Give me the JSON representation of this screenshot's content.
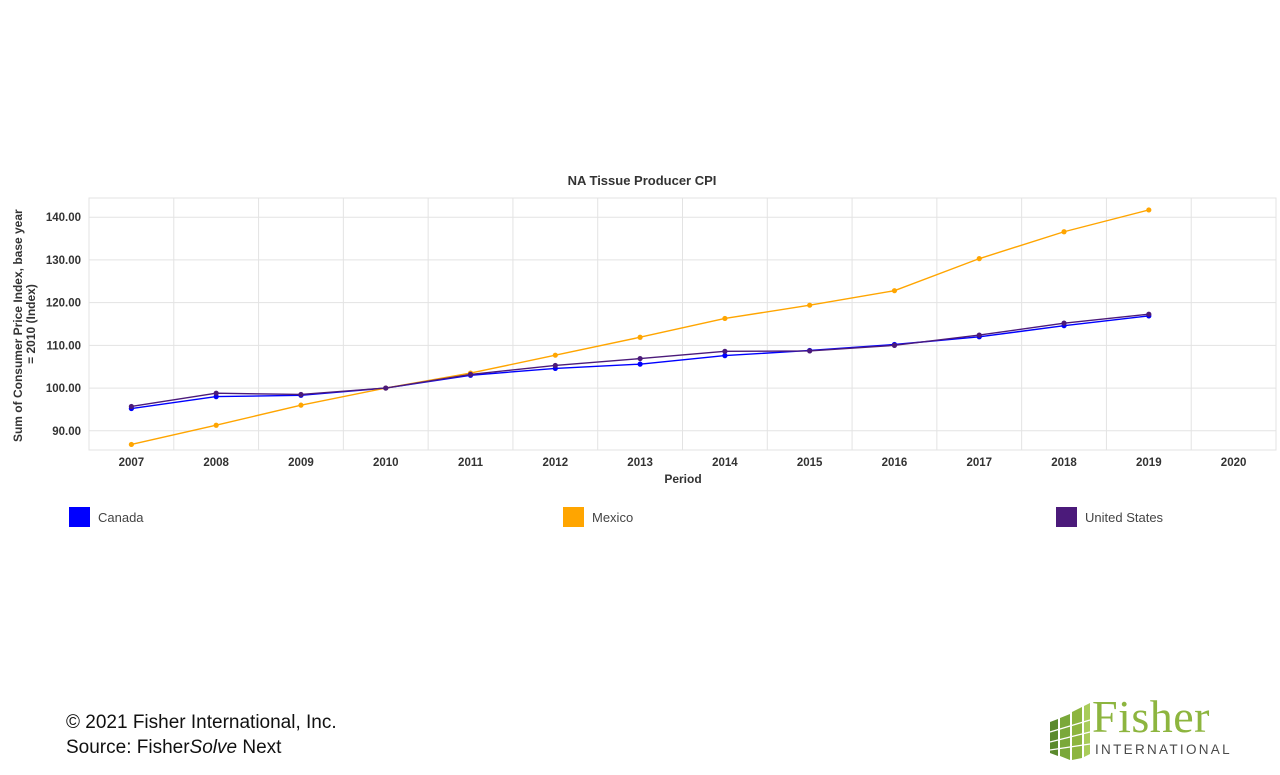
{
  "chart_data": {
    "type": "line",
    "title": "NA Tissue Producer CPI",
    "xlabel": "Period",
    "ylabel": "Sum of Consumer Price Index, base year = 2010 (Index)",
    "ylabel_lines": [
      "Sum of Consumer Price Index, base year",
      "= 2010 (Index)"
    ],
    "categories": [
      "2007",
      "2008",
      "2009",
      "2010",
      "2011",
      "2012",
      "2013",
      "2014",
      "2015",
      "2016",
      "2017",
      "2018",
      "2019",
      "2020"
    ],
    "yticks": [
      "90.00",
      "100.00",
      "110.00",
      "120.00",
      "130.00",
      "140.00"
    ],
    "ylim": [
      85.5,
      144.5
    ],
    "grid": true,
    "legend_position": "bottom",
    "series": [
      {
        "name": "Canada",
        "color": "#0000ff",
        "values": [
          95.2,
          98.0,
          98.3,
          100.0,
          103.0,
          104.6,
          105.6,
          107.6,
          108.8,
          110.2,
          112.0,
          114.6,
          116.9,
          null
        ]
      },
      {
        "name": "Mexico",
        "color": "#ffa500",
        "values": [
          86.8,
          91.3,
          96.0,
          100.0,
          103.5,
          107.7,
          111.9,
          116.3,
          119.4,
          122.8,
          130.3,
          136.6,
          141.7,
          null
        ]
      },
      {
        "name": "United States",
        "color": "#4b1a7a",
        "values": [
          95.7,
          98.8,
          98.5,
          100.0,
          103.2,
          105.3,
          106.9,
          108.6,
          108.7,
          110.0,
          112.4,
          115.2,
          117.3,
          null
        ]
      }
    ]
  },
  "footer": {
    "copyright": "© 2021 Fisher International, Inc.",
    "source_prefix": "Source: Fisher",
    "source_italic": "Solve",
    "source_suffix": " Next"
  },
  "logo": {
    "word": "Fisher",
    "sub": "INTERNATIONAL",
    "color": "#8db53f"
  }
}
